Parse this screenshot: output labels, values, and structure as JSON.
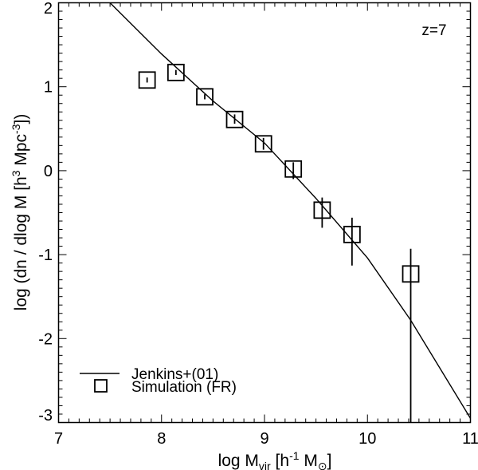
{
  "chart_data": {
    "type": "scatter",
    "annotation": "z=7",
    "xlabel": {
      "main": "log M",
      "sub": "vir",
      "rest1": " [h",
      "sup": "-1",
      "rest2": " M",
      "sun": "⊙",
      "rest3": "]"
    },
    "ylabel": {
      "main": "log (dn / dlog M   [h",
      "sup1": "3",
      "mid": " Mpc",
      "sup2": "-3",
      "end": "])"
    },
    "xlim": [
      7,
      11
    ],
    "ylim": [
      -3,
      2
    ],
    "xticks": [
      "7",
      "8",
      "9",
      "10",
      "11"
    ],
    "yticks": [
      "-3",
      "-2",
      "-1",
      "0",
      "1",
      "2"
    ],
    "legend": {
      "position": "bottom-left",
      "entries": [
        "Jenkins+(01)",
        "Simulation (FR)"
      ]
    },
    "series": [
      {
        "name": "Jenkins+(01)",
        "kind": "line",
        "x": [
          7.5,
          8.0,
          8.5,
          9.0,
          9.5,
          10.0,
          10.42,
          11.0
        ],
        "y": [
          2.0,
          1.39,
          0.83,
          0.33,
          -0.33,
          -1.04,
          -1.78,
          -2.95
        ]
      },
      {
        "name": "Simulation (FR)",
        "kind": "points",
        "x": [
          7.86,
          8.14,
          8.42,
          8.71,
          8.99,
          9.28,
          9.56,
          9.85,
          10.42
        ],
        "y": [
          1.08,
          1.17,
          0.88,
          0.61,
          0.32,
          0.02,
          -0.47,
          -0.76,
          -1.23
        ],
        "yerr_low": [
          1.05,
          1.14,
          0.85,
          0.56,
          0.25,
          -0.1,
          -0.68,
          -1.13,
          -3.0
        ],
        "yerr_high": [
          1.11,
          1.2,
          0.91,
          0.67,
          0.39,
          0.1,
          -0.32,
          -0.56,
          -0.93
        ]
      }
    ]
  }
}
